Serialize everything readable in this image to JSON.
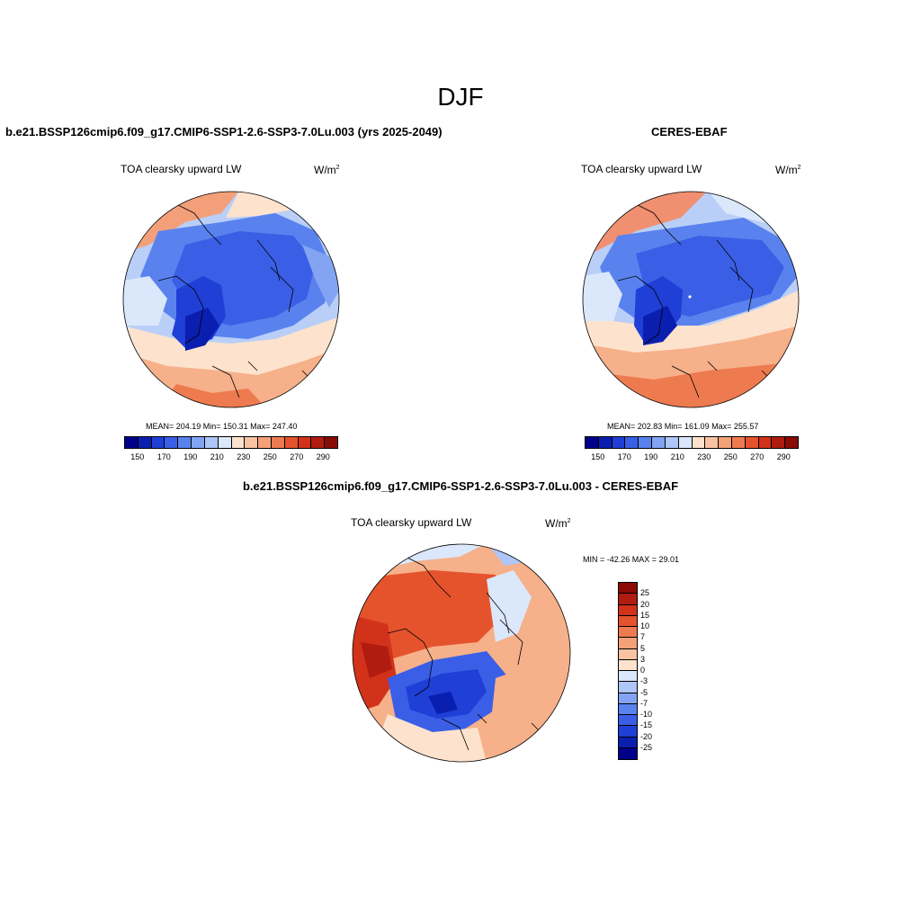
{
  "season": "DJF",
  "panels": [
    {
      "id": "model",
      "title": "b.e21.BSSP126cmip6.f09_g17.CMIP6-SSP1-2.6-SSP3-7.0Lu.003 (yrs 2025-2049)",
      "variable": "TOA clearsky upward LW",
      "units_base": "W/m",
      "units_exp": "2",
      "stats": "MEAN= 204.19  Min= 150.31  Max= 247.40"
    },
    {
      "id": "obs",
      "title": "CERES-EBAF",
      "variable": "TOA clearsky upward LW",
      "units_base": "W/m",
      "units_exp": "2",
      "stats": "MEAN= 202.83  Min= 161.09  Max= 255.57"
    }
  ],
  "diff_panel": {
    "title": "b.e21.BSSP126cmip6.f09_g17.CMIP6-SSP1-2.6-SSP3-7.0Lu.003 - CERES-EBAF",
    "variable": "TOA clearsky upward LW",
    "units_base": "W/m",
    "units_exp": "2",
    "stats": "MIN = -42.26 MAX =  29.01"
  },
  "colorbar_abs": {
    "colors": [
      "#00008b",
      "#0a1fb0",
      "#1f3fd6",
      "#3a5fe6",
      "#5a82ee",
      "#82a4f3",
      "#aec6f8",
      "#dbe7fb",
      "#fde3cd",
      "#f9c3a3",
      "#f4a078",
      "#ee7b50",
      "#e5532c",
      "#d2321a",
      "#b01c10",
      "#8a0a06"
    ],
    "tick_labels": [
      "150",
      "170",
      "190",
      "210",
      "230",
      "250",
      "270",
      "290"
    ]
  },
  "colorbar_diff": {
    "colors": [
      "#8a0a06",
      "#b01c10",
      "#d2321a",
      "#e5532c",
      "#ee7b50",
      "#f4a078",
      "#f9c3a3",
      "#fde3cd",
      "#dbe7fb",
      "#aec6f8",
      "#82a4f3",
      "#5a82ee",
      "#3a5fe6",
      "#1f3fd6",
      "#0a1fb0",
      "#00008b"
    ],
    "tick_labels": [
      "25",
      "20",
      "15",
      "10",
      "7",
      "5",
      "3",
      "0",
      "-3",
      "-5",
      "-7",
      "-10",
      "-15",
      "-20",
      "-25"
    ]
  }
}
